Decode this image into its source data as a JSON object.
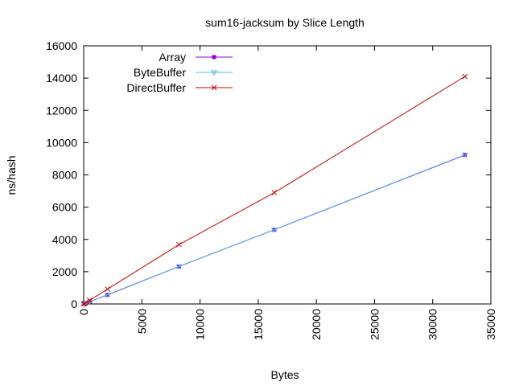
{
  "chart_data": {
    "type": "line",
    "title": "sum16-jacksum by Slice Length",
    "xlabel": "Bytes",
    "ylabel": "ns/hash",
    "xlim": [
      0,
      35000
    ],
    "ylim": [
      0,
      16000
    ],
    "xticks": [
      0,
      5000,
      10000,
      15000,
      20000,
      25000,
      30000,
      35000
    ],
    "yticks": [
      0,
      2000,
      4000,
      6000,
      8000,
      10000,
      12000,
      14000,
      16000
    ],
    "grid": false,
    "legend_position": "top-left",
    "series": [
      {
        "name": "Array",
        "color": "#9400d3",
        "marker": "square",
        "points": [
          [
            8,
            2
          ],
          [
            32,
            8
          ],
          [
            128,
            35
          ],
          [
            512,
            140
          ],
          [
            2048,
            560
          ],
          [
            8192,
            2320
          ],
          [
            16384,
            4600
          ],
          [
            32768,
            9230
          ]
        ]
      },
      {
        "name": "ByteBuffer",
        "color": "#56b4e9",
        "marker": "triangle-down",
        "points": [
          [
            8,
            2
          ],
          [
            32,
            8
          ],
          [
            128,
            35
          ],
          [
            512,
            145
          ],
          [
            2048,
            580
          ],
          [
            8192,
            2330
          ],
          [
            16384,
            4610
          ],
          [
            32768,
            9250
          ]
        ]
      },
      {
        "name": "DirectBuffer",
        "color": "#cc0000",
        "marker": "x",
        "points": [
          [
            8,
            4
          ],
          [
            32,
            14
          ],
          [
            128,
            60
          ],
          [
            512,
            230
          ],
          [
            2048,
            920
          ],
          [
            8192,
            3680
          ],
          [
            16384,
            6900
          ],
          [
            32768,
            14100
          ]
        ]
      }
    ]
  }
}
